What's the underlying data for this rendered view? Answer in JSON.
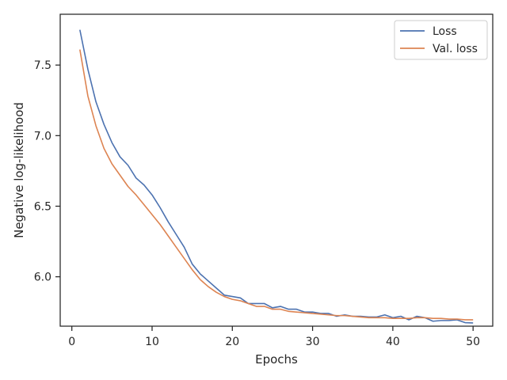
{
  "chart_data": {
    "type": "line",
    "title": "",
    "xlabel": "Epochs",
    "ylabel": "Negative log-likelihood",
    "xlim": [
      -1.45,
      52.45
    ],
    "ylim": [
      5.65,
      7.86
    ],
    "xticks": [
      0,
      10,
      20,
      30,
      40,
      50
    ],
    "xtick_labels": [
      "0",
      "10",
      "20",
      "30",
      "40",
      "50"
    ],
    "yticks": [
      6.0,
      6.5,
      7.0,
      7.5
    ],
    "ytick_labels": [
      "6.0",
      "6.5",
      "7.0",
      "7.5"
    ],
    "grid": false,
    "legend_position": "upper right",
    "x": [
      1,
      2,
      3,
      4,
      5,
      6,
      7,
      8,
      9,
      10,
      11,
      12,
      13,
      14,
      15,
      16,
      17,
      18,
      19,
      20,
      21,
      22,
      23,
      24,
      25,
      26,
      27,
      28,
      29,
      30,
      31,
      32,
      33,
      34,
      35,
      36,
      37,
      38,
      39,
      40,
      41,
      42,
      43,
      44,
      45,
      46,
      47,
      48,
      49,
      50
    ],
    "series": [
      {
        "name": "Loss",
        "color": "#4c72b0",
        "values": [
          7.75,
          7.47,
          7.24,
          7.08,
          6.95,
          6.85,
          6.79,
          6.7,
          6.65,
          6.58,
          6.49,
          6.39,
          6.3,
          6.21,
          6.09,
          6.02,
          5.97,
          5.92,
          5.87,
          5.86,
          5.85,
          5.81,
          5.81,
          5.81,
          5.78,
          5.79,
          5.77,
          5.77,
          5.75,
          5.75,
          5.74,
          5.74,
          5.72,
          5.73,
          5.72,
          5.72,
          5.715,
          5.715,
          5.73,
          5.71,
          5.72,
          5.695,
          5.72,
          5.71,
          5.685,
          5.69,
          5.69,
          5.695,
          5.675,
          5.673
        ]
      },
      {
        "name": "Val. loss",
        "color": "#dd8452",
        "values": [
          7.61,
          7.28,
          7.07,
          6.91,
          6.8,
          6.72,
          6.64,
          6.58,
          6.51,
          6.44,
          6.37,
          6.29,
          6.21,
          6.13,
          6.05,
          5.98,
          5.93,
          5.89,
          5.86,
          5.84,
          5.83,
          5.81,
          5.79,
          5.79,
          5.77,
          5.77,
          5.755,
          5.75,
          5.745,
          5.74,
          5.735,
          5.73,
          5.725,
          5.725,
          5.72,
          5.715,
          5.71,
          5.71,
          5.71,
          5.705,
          5.705,
          5.705,
          5.71,
          5.71,
          5.705,
          5.705,
          5.7,
          5.7,
          5.695,
          5.695
        ]
      }
    ]
  }
}
